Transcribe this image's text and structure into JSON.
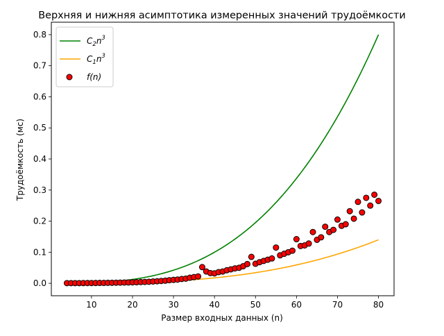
{
  "chart_data": {
    "type": "scatter",
    "title": "Верхняя и нижняя асимптотика измеренных значений трудоёмкости",
    "xlabel": "Размер входных данных (n)",
    "ylabel": "Трудоёмкость (мс)",
    "xlim": [
      0.2,
      83.8
    ],
    "ylim": [
      -0.04,
      0.84
    ],
    "xticks": [
      10,
      20,
      30,
      40,
      50,
      60,
      70,
      80
    ],
    "yticks": [
      0.0,
      0.1,
      0.2,
      0.3,
      0.4,
      0.5,
      0.6,
      0.7,
      0.8
    ],
    "legend_position": "top-left",
    "legend": [
      {
        "label_base": "C",
        "label_sub": "2",
        "label_var": "n",
        "label_sup": "3",
        "kind": "line",
        "color": "#008000"
      },
      {
        "label_base": "C",
        "label_sub": "1",
        "label_var": "n",
        "label_sup": "3",
        "kind": "line",
        "color": "#ffa500"
      },
      {
        "label_base": "f(n)",
        "kind": "marker",
        "color": "#ff0000"
      }
    ],
    "series": [
      {
        "name": "C₂n³",
        "type": "line",
        "color": "#008000",
        "coefficient": 1.5625e-06,
        "x_range": [
          4,
          80
        ]
      },
      {
        "name": "C₁n³",
        "type": "line",
        "color": "#ffa500",
        "coefficient": 2.734e-07,
        "x_range": [
          4,
          80
        ]
      },
      {
        "name": "f(n)",
        "type": "scatter",
        "color": "#ff0000",
        "edge_color": "#000000",
        "x": [
          4,
          5,
          6,
          7,
          8,
          9,
          10,
          11,
          12,
          13,
          14,
          15,
          16,
          17,
          18,
          19,
          20,
          21,
          22,
          23,
          24,
          25,
          26,
          27,
          28,
          29,
          30,
          31,
          32,
          33,
          34,
          35,
          36,
          37,
          38,
          39,
          40,
          41,
          42,
          43,
          44,
          45,
          46,
          47,
          48,
          49,
          50,
          51,
          52,
          53,
          54,
          55,
          56,
          57,
          58,
          59,
          60,
          61,
          62,
          63,
          64,
          65,
          66,
          67,
          68,
          69,
          70,
          71,
          72,
          73,
          74,
          75,
          76,
          77,
          78,
          79,
          80
        ],
        "y": [
          0.0005,
          0.0005,
          0.0006,
          0.0006,
          0.0007,
          0.0008,
          0.0009,
          0.001,
          0.0012,
          0.0013,
          0.0015,
          0.0017,
          0.002,
          0.0022,
          0.0025,
          0.0028,
          0.0031,
          0.0035,
          0.004,
          0.0045,
          0.005,
          0.0058,
          0.0065,
          0.0075,
          0.0085,
          0.01,
          0.011,
          0.012,
          0.014,
          0.015,
          0.018,
          0.02,
          0.022,
          0.052,
          0.038,
          0.033,
          0.032,
          0.036,
          0.038,
          0.042,
          0.045,
          0.048,
          0.05,
          0.055,
          0.062,
          0.085,
          0.063,
          0.068,
          0.072,
          0.076,
          0.08,
          0.115,
          0.09,
          0.095,
          0.1,
          0.105,
          0.142,
          0.12,
          0.122,
          0.128,
          0.165,
          0.14,
          0.148,
          0.182,
          0.165,
          0.172,
          0.205,
          0.185,
          0.19,
          0.232,
          0.208,
          0.262,
          0.228,
          0.275,
          0.25,
          0.285,
          0.265
        ]
      }
    ]
  }
}
